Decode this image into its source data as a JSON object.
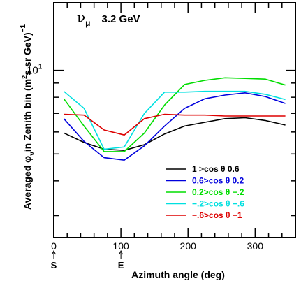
{
  "chart_data": {
    "type": "line",
    "title_particle": "ν",
    "title_sub": "μ",
    "title_energy": "3.2 GeV",
    "xlabel": "Azimuth angle (deg)",
    "ylabel_main": "Averaged   φ",
    "ylabel_sub": "ν",
    "ylabel_rest": "in Zenith bin",
    "yunit_left": "(m",
    "yunit_sq": "2",
    "yunit_mid": "s sr GeV)",
    "yunit_exp": "−1",
    "y_tick_base": "10",
    "y_tick_exp": "1",
    "y_scale": "log",
    "xlim": [
      0,
      360
    ],
    "ylim": [
      2.5,
      17.5
    ],
    "x_ticks": [
      {
        "value": 0,
        "label": "0"
      },
      {
        "value": 100,
        "label": "100"
      },
      {
        "value": 200,
        "label": "200"
      },
      {
        "value": 300,
        "label": "300"
      }
    ],
    "direction_markers": [
      {
        "value": 0,
        "label": "S"
      },
      {
        "value": 100,
        "label": "E"
      }
    ],
    "x": [
      15,
      45,
      75,
      105,
      135,
      165,
      195,
      225,
      255,
      285,
      315,
      345
    ],
    "series": [
      {
        "name": "1 >cos  θ  0.6",
        "color": "#000000",
        "values": [
          5.95,
          5.5,
          5.2,
          5.15,
          5.4,
          5.9,
          6.3,
          6.5,
          6.7,
          6.75,
          6.6,
          6.35
        ]
      },
      {
        "name": "0.6>cos  θ  0.2",
        "color": "#0000dd",
        "values": [
          6.7,
          5.55,
          4.85,
          4.75,
          5.35,
          6.3,
          7.3,
          7.9,
          8.15,
          8.3,
          8.05,
          7.6
        ]
      },
      {
        "name": "0.2>cos  θ  −.2",
        "color": "#00dd00",
        "values": [
          7.9,
          6.3,
          5.1,
          5.1,
          5.95,
          7.5,
          8.9,
          9.2,
          9.4,
          9.35,
          9.3,
          8.85
        ]
      },
      {
        "name": "−.2>cos  θ  −.6",
        "color": "#00e0e0",
        "values": [
          8.4,
          7.3,
          5.2,
          5.3,
          7.0,
          8.35,
          8.35,
          8.4,
          8.4,
          8.4,
          8.2,
          7.85
        ]
      },
      {
        "name": "−.6>cos  θ  −1",
        "color": "#dd0000",
        "values": [
          6.95,
          6.9,
          6.1,
          5.85,
          6.7,
          6.95,
          6.9,
          6.9,
          6.85,
          6.85,
          6.85,
          6.85
        ]
      }
    ],
    "legend_position": "lower-right",
    "grid": false
  }
}
